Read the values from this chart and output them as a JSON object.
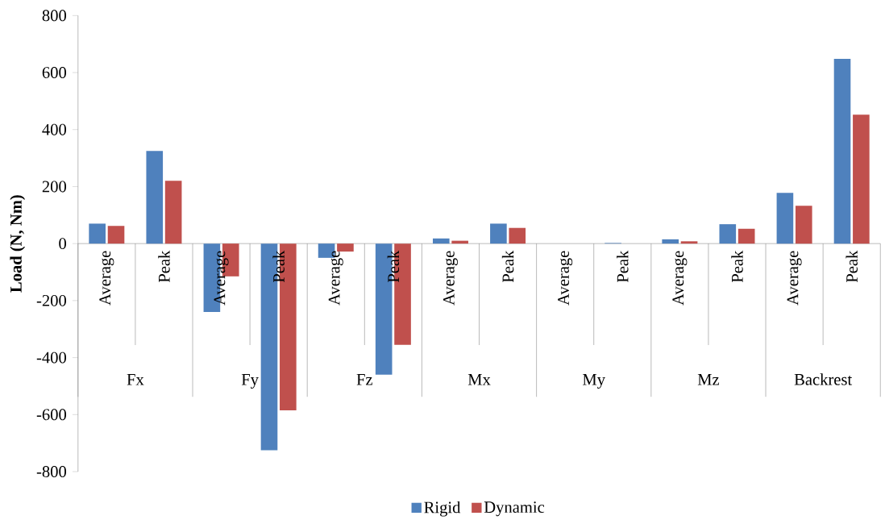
{
  "chart_data": {
    "type": "bar",
    "categories": [
      "Average",
      "Peak",
      "Average",
      "Peak",
      "Average",
      "Peak",
      "Average",
      "Peak",
      "Average",
      "Peak",
      "Average",
      "Peak",
      "Average",
      "Peak"
    ],
    "annotations": [
      "Fx",
      "Fy",
      "Fz",
      "Mx",
      "My",
      "Mz",
      "Backrest"
    ],
    "ylabel": "**Load (N, Nm)**",
    "ylim": [
      -800,
      800
    ],
    "yticks": [
      -800,
      -600,
      -400,
      -200,
      0,
      200,
      400,
      600,
      800
    ],
    "legend": "bottom",
    "series": [
      {
        "name": "Rigid",
        "color": "#4f81bd",
        "values": [
          70,
          325,
          -240,
          -725,
          -50,
          -460,
          18,
          70,
          0,
          2,
          15,
          68,
          178,
          648
        ]
      },
      {
        "name": "Dynamic",
        "color": "#c0504d",
        "values": [
          62,
          220,
          -115,
          -585,
          -28,
          -355,
          10,
          55,
          0,
          null,
          8,
          52,
          133,
          452
        ]
      }
    ]
  }
}
